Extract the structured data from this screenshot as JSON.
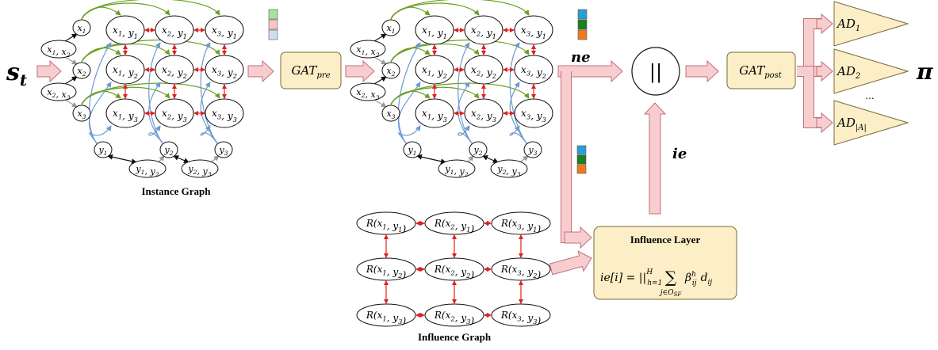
{
  "input": {
    "label": "s_t",
    "main": "s",
    "sub": "t"
  },
  "output": {
    "label": "π"
  },
  "instance_graph": {
    "caption": "Instance Graph",
    "x_nodes": [
      "x1",
      "x2",
      "x3"
    ],
    "xx_nodes": [
      "x1,x2",
      "x2,x3"
    ],
    "xy_nodes": [
      [
        "x1,y1",
        "x2,y1",
        "x3,y1"
      ],
      [
        "x1,y2",
        "x2,y2",
        "x3,y2"
      ],
      [
        "x1,y3",
        "x2,y3",
        "x3,y3"
      ]
    ],
    "y_nodes": [
      "y1",
      "y2",
      "y3"
    ],
    "yy_nodes": [
      "y1,y2",
      "y2,y3"
    ],
    "swatch_colors": [
      "#a6e3a1",
      "#f6c6c6",
      "#d2dcf0"
    ]
  },
  "processed_graph": {
    "swatch_colors": [
      "#2a9fd6",
      "#1e7d1e",
      "#f07a1a"
    ]
  },
  "gat_pre": {
    "main": "GAT",
    "sub": "pre"
  },
  "gat_post": {
    "main": "GAT",
    "sub": "post"
  },
  "concat": {
    "symbol": "||"
  },
  "ne_label": "ne",
  "ie_label": "ie",
  "influence_graph": {
    "caption": "Influence Graph",
    "nodes": [
      [
        "R(x1,y1)",
        "R(x2,y1)",
        "R(x3,y1)"
      ],
      [
        "R(x1,y2)",
        "R(x2,y2)",
        "R(x3,y2)"
      ],
      [
        "R(x1,y3)",
        "R(x2,y3)",
        "R(x3,y3)"
      ]
    ]
  },
  "influence_layer": {
    "title": "Influence Layer",
    "formula": "ie[i] = ||ₕ₌₁ᴴ Σ_{j∈O_SF} βᵢⱼʰ dᵢⱼ",
    "lhs": "ie[i] = ||",
    "h_sub": "h=1",
    "h_sup": "H",
    "sum": "∑",
    "sum_sub": "j∈O",
    "sum_sub2": "SF",
    "beta": "β",
    "beta_sup": "h",
    "beta_sub": "ij",
    "d": "d",
    "d_sub": "ij"
  },
  "action_heads": [
    {
      "main": "AD",
      "sub": "1"
    },
    {
      "main": "AD",
      "sub": "2"
    },
    {
      "main": "AD",
      "sub": "|A|"
    }
  ],
  "ellipsis": "...",
  "colors": {
    "arrow_fill": "#f8cdd0",
    "arrow_stroke": "#c0707a",
    "box_fill": "#fcefc7",
    "box_stroke": "#7a6a3a",
    "green": "#6aa020",
    "blue": "#6c9bd2",
    "red": "#e02020",
    "gray": "#9a9a9a"
  }
}
